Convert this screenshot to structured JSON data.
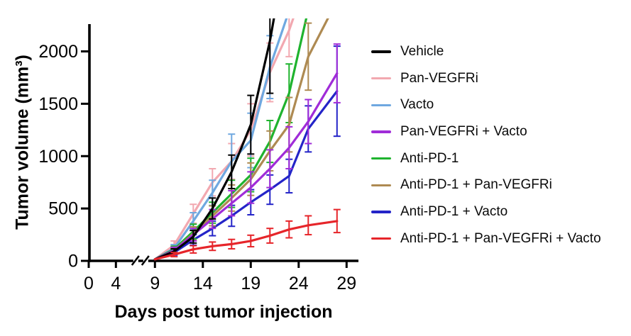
{
  "chart_data": {
    "type": "line",
    "title": "",
    "xlabel": "Days post tumor injection",
    "ylabel": "Tumor volume (mm³)",
    "x_ticks": [
      0,
      4,
      9,
      14,
      19,
      24,
      29
    ],
    "y_ticks": [
      0,
      500,
      1000,
      1500,
      2000
    ],
    "xlim": [
      0,
      30
    ],
    "ylim": [
      0,
      2250
    ],
    "x_axis_break": {
      "between": [
        4,
        9
      ]
    },
    "grid": false,
    "legend_position": "right",
    "point_format": [
      "day",
      "tumor_volume_mm3",
      "error"
    ],
    "series": [
      {
        "name": "Vehicle",
        "color": "#000000",
        "points": [
          [
            9,
            15,
            0
          ],
          [
            11,
            90,
            25
          ],
          [
            13,
            230,
            60
          ],
          [
            15,
            500,
            100
          ],
          [
            17,
            850,
            160
          ],
          [
            19,
            1300,
            280
          ],
          [
            21,
            2100,
            500
          ],
          [
            21.5,
            2360,
            0
          ]
        ]
      },
      {
        "name": "Pan-VEGFRi",
        "color": "#F2A8B0",
        "points": [
          [
            9,
            15,
            0
          ],
          [
            11,
            150,
            40
          ],
          [
            13,
            450,
            90
          ],
          [
            15,
            750,
            130
          ],
          [
            17,
            950,
            170
          ],
          [
            19,
            1250,
            250
          ],
          [
            21,
            1800,
            280
          ],
          [
            23,
            2200,
            250
          ],
          [
            23.6,
            2360,
            0
          ]
        ]
      },
      {
        "name": "Vacto",
        "color": "#6FA8E0",
        "points": [
          [
            9,
            15,
            0
          ],
          [
            11,
            120,
            35
          ],
          [
            13,
            380,
            80
          ],
          [
            15,
            650,
            120
          ],
          [
            17,
            950,
            260
          ],
          [
            19,
            1150,
            260
          ],
          [
            21,
            1850,
            300
          ],
          [
            22.9,
            2360,
            0
          ]
        ]
      },
      {
        "name": "Pan-VEGFRi + Vacto",
        "color": "#A02CD8",
        "points": [
          [
            9,
            15,
            0
          ],
          [
            11,
            100,
            30
          ],
          [
            13,
            250,
            60
          ],
          [
            15,
            400,
            90
          ],
          [
            17,
            550,
            120
          ],
          [
            19,
            700,
            150
          ],
          [
            21,
            880,
            180
          ],
          [
            23,
            1080,
            200
          ],
          [
            25,
            1330,
            210
          ],
          [
            28,
            1790,
            280
          ]
        ]
      },
      {
        "name": "Anti-PD-1",
        "color": "#1FB32E",
        "points": [
          [
            9,
            15,
            0
          ],
          [
            11,
            110,
            30
          ],
          [
            13,
            280,
            70
          ],
          [
            15,
            460,
            100
          ],
          [
            17,
            640,
            130
          ],
          [
            19,
            820,
            160
          ],
          [
            21,
            1140,
            200
          ],
          [
            23,
            1600,
            280
          ],
          [
            24.9,
            2360,
            0
          ]
        ]
      },
      {
        "name": "Anti-PD-1 + Pan-VEGFRi",
        "color": "#AE8A52",
        "points": [
          [
            9,
            15,
            0
          ],
          [
            11,
            100,
            30
          ],
          [
            13,
            260,
            65
          ],
          [
            15,
            430,
            95
          ],
          [
            17,
            600,
            125
          ],
          [
            19,
            780,
            155
          ],
          [
            21,
            1050,
            190
          ],
          [
            23,
            1300,
            260
          ],
          [
            25,
            1950,
            320
          ],
          [
            27.3,
            2360,
            0
          ]
        ]
      },
      {
        "name": "Anti-PD-1 + Vacto",
        "color": "#2424C8",
        "points": [
          [
            9,
            15,
            0
          ],
          [
            11,
            80,
            25
          ],
          [
            13,
            200,
            50
          ],
          [
            15,
            310,
            70
          ],
          [
            17,
            430,
            100
          ],
          [
            19,
            560,
            120
          ],
          [
            21,
            680,
            140
          ],
          [
            23,
            810,
            160
          ],
          [
            25,
            1260,
            220
          ],
          [
            28,
            1620,
            430
          ]
        ]
      },
      {
        "name": "Anti-PD-1 + Pan-VEGFRi + Vacto",
        "color": "#E6252A",
        "points": [
          [
            9,
            15,
            0
          ],
          [
            11,
            60,
            20
          ],
          [
            13,
            110,
            35
          ],
          [
            15,
            140,
            40
          ],
          [
            17,
            160,
            45
          ],
          [
            19,
            190,
            55
          ],
          [
            21,
            240,
            70
          ],
          [
            23,
            300,
            80
          ],
          [
            25,
            340,
            90
          ],
          [
            28,
            380,
            110
          ]
        ]
      }
    ]
  }
}
